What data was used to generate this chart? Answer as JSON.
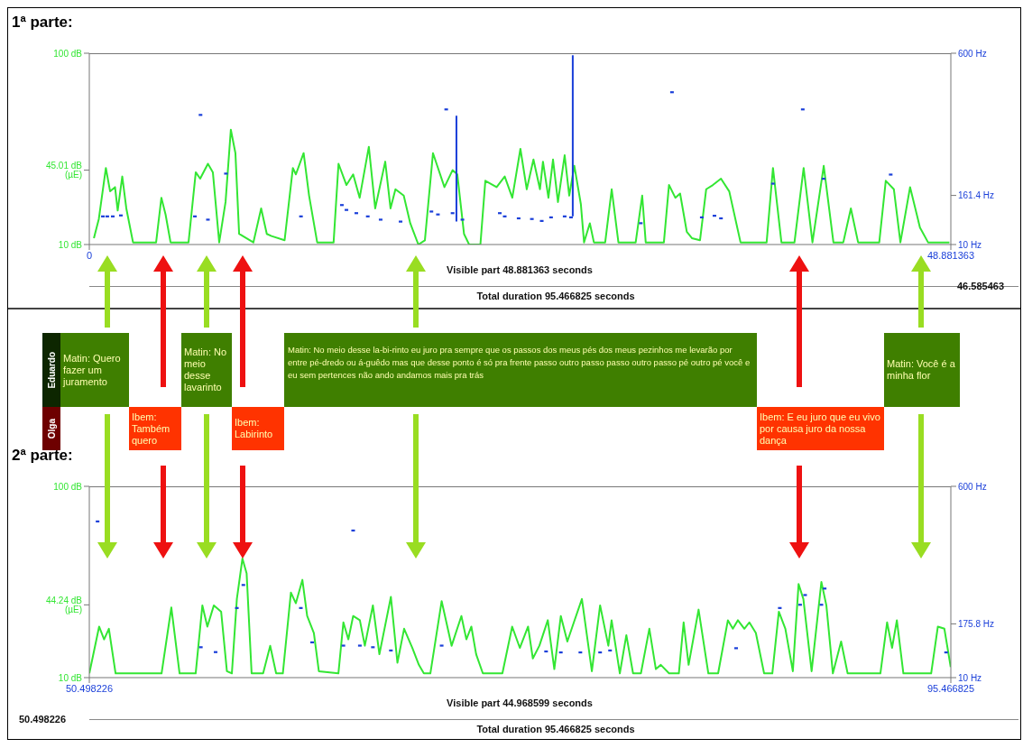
{
  "chart_data": [
    {
      "type": "line",
      "title": "1ª parte:",
      "xlim": [
        0,
        48.881363
      ],
      "xticks": [
        0,
        48.881363
      ],
      "ylim": [
        10,
        100
      ],
      "yticks": [
        {
          "value": 10,
          "label": "10 dB"
        },
        {
          "value": 45.01,
          "label": "45.01 dB (µE)"
        },
        {
          "value": 100,
          "label": "100 dB"
        }
      ],
      "y2lim": [
        10,
        600
      ],
      "y2ticks": [
        {
          "value": 10,
          "label": "10 Hz"
        },
        {
          "value": 161.4,
          "label": "161.4 Hz"
        },
        {
          "value": 600,
          "label": "600 Hz"
        }
      ],
      "annotations": [
        "Visible part 48.881363 seconds",
        "Total duration 95.466825 seconds",
        "46.585463"
      ],
      "series": [
        {
          "type": "line",
          "color": "#33e633",
          "marker": "none",
          "x": [
            0.26,
            0.54,
            0.94,
            1.18,
            1.46,
            1.61,
            1.87,
            2.1,
            2.48,
            3.79,
            4.09,
            4.33,
            4.61,
            5.63,
            6.04,
            6.29,
            6.73,
            7.01,
            7.37,
            7.73,
            8.03,
            8.29,
            8.5,
            9.31,
            9.75,
            10.07,
            10.34,
            11.08,
            11.55,
            11.72,
            12.16,
            12.47,
            12.93,
            13.86,
            14.14,
            14.59,
            14.97,
            15.34,
            15.86,
            16.22,
            16.79,
            17.09,
            17.37,
            17.84,
            18.21,
            18.67,
            19.04,
            19.5,
            20.15,
            20.61,
            20.88,
            21.26,
            21.55,
            22.19,
            22.47,
            23.11,
            23.57,
            24.0,
            24.46,
            24.82,
            25.2,
            25.57,
            25.74,
            26.05,
            26.31,
            26.59,
            26.97,
            27.23,
            27.52,
            27.89,
            28.07,
            28.4,
            28.63,
            29.27,
            29.64,
            30.02,
            31.0,
            31.37,
            31.57,
            32.6,
            32.89,
            33.25,
            33.52,
            33.9,
            34.19,
            34.65,
            35.0,
            35.38,
            35.84,
            36.31,
            36.95,
            38.43,
            38.79,
            39.27,
            40.01,
            40.53,
            41.03,
            41.67,
            42.22,
            42.78,
            43.21,
            43.62,
            44.82,
            45.19,
            45.65,
            46.02,
            46.57,
            47.13,
            47.59,
            48.8
          ],
          "values": [
            13,
            22,
            46,
            35,
            37,
            26,
            42,
            27,
            11,
            11,
            32,
            24,
            11,
            11,
            44,
            41,
            48,
            44,
            11,
            30,
            64,
            53,
            15,
            11,
            27,
            15,
            14,
            12,
            46,
            43,
            53,
            33,
            11,
            11,
            48,
            38,
            43,
            32,
            56,
            27,
            49,
            27,
            36,
            33,
            20,
            10,
            12,
            53,
            37,
            45,
            43,
            15,
            10,
            10,
            40,
            37,
            42,
            32,
            55,
            36,
            50,
            36,
            49,
            32,
            50,
            30,
            52,
            33,
            47,
            29,
            11,
            20,
            11,
            11,
            36,
            11,
            11,
            33,
            11,
            11,
            38,
            32,
            34,
            16,
            13,
            12,
            36,
            38,
            41,
            35,
            11,
            11,
            46,
            11,
            11,
            46,
            11,
            47,
            11,
            11,
            27,
            11,
            11,
            40,
            36,
            11,
            37,
            18,
            11,
            11
          ]
        },
        {
          "type": "scatter",
          "axis": "y2",
          "color": "#1a3fd9",
          "marker": "square",
          "x": [
            0.77,
            1.02,
            1.33,
            1.79,
            5.99,
            6.31,
            6.73,
            7.75,
            12.01,
            14.33,
            14.59,
            15.15,
            15.8,
            16.53,
            17.66,
            19.41,
            19.78,
            20.25,
            20.61,
            21.17,
            23.29,
            23.57,
            24.36,
            25.11,
            25.67,
            26.2,
            26.97,
            27.33,
            31.29,
            33.06,
            34.75,
            35.47,
            35.84,
            38.79,
            40.48,
            41.66,
            45.47
          ],
          "values": [
            97,
            97,
            97,
            100,
            97,
            410,
            87,
            229,
            97,
            132,
            117,
            107,
            97,
            87,
            81,
            112,
            103,
            427,
            107,
            87,
            107,
            97,
            91,
            89,
            83,
            94,
            97,
            94,
            76,
            480,
            94,
            99,
            91,
            198,
            427,
            213,
            226
          ]
        },
        {
          "type": "line",
          "axis": "y2",
          "color": "#1a3fd9",
          "marker": "none",
          "x": [
            20.83,
            20.83,
            24,
            27.43,
            27.43
          ],
          "values": [
            407,
            81,
            null,
            97,
            594
          ]
        }
      ]
    },
    {
      "type": "other",
      "categories": [
        "Eduardo",
        "Olga"
      ],
      "colors": [
        "#0d2600",
        "#6e0000"
      ],
      "annotations": [
        "Matin: Quero fazer um juramento",
        "Ibem: Também quero",
        "Matin: No meio desse lavarinto",
        "Ibem: Labirinto",
        "Matin: No meio desse la-bi-rinto eu juro pra sempre que os passos dos meus pés dos meus pezinhos me levarão por entre pé-dredo ou á-guêdo mas que desse ponto é só pra frente passo outro passo passo outro passo pé outro pé você e eu sem pertences não ando andamos mais pra trás",
        "Ibem: E eu juro que eu vivo por causa juro da nossa dança",
        "Matin: Você é a minha flor"
      ]
    },
    {
      "type": "line",
      "title": "2ª parte:",
      "xlim": [
        50.498226,
        95.466825
      ],
      "xticks": [
        50.498226,
        95.466825
      ],
      "ylim": [
        10,
        100
      ],
      "yticks": [
        {
          "value": 10,
          "label": "10 dB"
        },
        {
          "value": 44.24,
          "label": "44.24 dB (µE)"
        },
        {
          "value": 100,
          "label": "100 dB"
        }
      ],
      "y2lim": [
        10,
        600
      ],
      "y2ticks": [
        {
          "value": 10,
          "label": "10 Hz"
        },
        {
          "value": 175.8,
          "label": "175.8 Hz"
        },
        {
          "value": 600,
          "label": "600 Hz"
        }
      ],
      "annotations": [
        "Visible part 44.968599 seconds",
        "Total duration 95.466825 seconds",
        "50.498226"
      ],
      "series": [
        {
          "type": "line",
          "color": "#33e633",
          "marker": "none",
          "x": [
            50.5,
            51.01,
            51.27,
            51.52,
            51.87,
            54.27,
            54.78,
            55.21,
            56.05,
            56.4,
            56.66,
            57.0,
            57.38,
            57.68,
            57.94,
            58.2,
            58.49,
            58.71,
            58.97,
            59.57,
            59.94,
            60.25,
            60.6,
            61.02,
            61.28,
            61.62,
            61.87,
            62.22,
            62.48,
            63.5,
            63.76,
            64.02,
            64.27,
            64.62,
            64.88,
            65.3,
            65.64,
            66.24,
            66.58,
            66.93,
            67.36,
            67.7,
            67.96,
            68.3,
            68.89,
            69.41,
            69.92,
            70.18,
            70.44,
            70.69,
            71.04,
            72.06,
            72.57,
            72.97,
            73.4,
            73.65,
            73.99,
            74.43,
            74.77,
            75.11,
            75.45,
            75.79,
            76.21,
            76.73,
            77.16,
            77.59,
            77.76,
            78.19,
            78.53,
            78.88,
            79.29,
            79.73,
            80.07,
            80.33,
            80.76,
            81.27,
            81.52,
            81.78,
            82.3,
            82.81,
            83.32,
            83.83,
            84.09,
            84.35,
            84.69,
            84.95,
            85.29,
            85.72,
            86.15,
            86.49,
            86.83,
            87.22,
            87.52,
            87.77,
            88.2,
            88.71,
            88.97,
            89.31,
            89.74,
            90.08,
            91.79,
            92.14,
            92.4,
            92.65,
            92.99,
            94.44,
            94.79,
            95.13,
            95.46
          ],
          "values": [
            12,
            34,
            28,
            33,
            12,
            12,
            43,
            12,
            12,
            44,
            34,
            44,
            41,
            13,
            12,
            47,
            66,
            59,
            12,
            12,
            25,
            12,
            12,
            50,
            45,
            56,
            39,
            31,
            13,
            12,
            36,
            28,
            39,
            37,
            25,
            44,
            21,
            48,
            17,
            33,
            24,
            16,
            12,
            12,
            46,
            25,
            39,
            28,
            34,
            21,
            12,
            12,
            34,
            24,
            34,
            19,
            25,
            37,
            14,
            39,
            27,
            36,
            47,
            13,
            44,
            25,
            37,
            12,
            30,
            12,
            12,
            33,
            14,
            16,
            12,
            12,
            36,
            16,
            42,
            12,
            12,
            37,
            33,
            37,
            33,
            36,
            31,
            12,
            12,
            41,
            33,
            13,
            54,
            47,
            13,
            55,
            44,
            12,
            27,
            12,
            12,
            36,
            24,
            37,
            12,
            12,
            34,
            33,
            15
          ]
        },
        {
          "type": "scatter",
          "axis": "y2",
          "color": "#1a3fd9",
          "marker": "square",
          "x": [
            50.93,
            56.32,
            57.09,
            58.2,
            58.54,
            61.54,
            62.13,
            63.76,
            64.27,
            64.62,
            65.3,
            66.24,
            68.89,
            74.34,
            75.11,
            76.13,
            77.16,
            77.68,
            84.26,
            86.54,
            87.6,
            87.86,
            88.71,
            88.88,
            95.22
          ],
          "values": [
            492,
            104,
            89,
            225,
            296,
            225,
            119,
            109,
            464,
            109,
            104,
            94,
            109,
            91,
            88,
            88,
            88,
            94,
            101,
            225,
            235,
            265,
            235,
            285,
            88
          ]
        }
      ]
    }
  ]
}
